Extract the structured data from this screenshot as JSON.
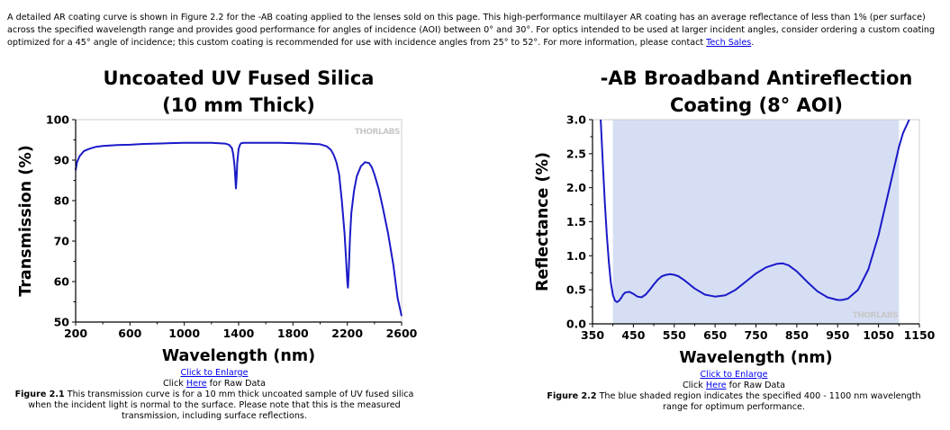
{
  "intro": {
    "text_before_link": "A detailed AR coating curve is shown in Figure 2.2 for the -AB coating applied to the lenses sold on this page. This high-performance multilayer AR coating has an average reflectance of less than 1% (per surface) across the specified wavelength range and provides good performance for angles of incidence (AOI) between 0° and 30°. For optics intended to be used at larger incident angles, consider ordering a custom coating optimized for a 45° angle of incidence; this custom coating is recommended for use with incidence angles from 25° to 52°. For more information, please contact ",
    "link_text": "Tech Sales",
    "text_after_link": "."
  },
  "figure1": {
    "enlarge_link": "Click to Enlarge",
    "raw_prefix": "Click ",
    "raw_link": "Here",
    "raw_suffix": " for Raw Data",
    "label": "Figure 2.1",
    "caption": "  This transmission curve is for a 10 mm thick uncoated sample of UV fused silica when the incident light is normal to the surface. Please note that this is the measured transmission, including surface reflections."
  },
  "figure2": {
    "enlarge_link": "Click to Enlarge",
    "raw_prefix": "Click ",
    "raw_link": "Here",
    "raw_suffix": " for Raw Data",
    "label": "Figure 2.2",
    "caption": "  The blue shaded region indicates the specified 400 - 1100 nm wavelength range for optimum performance."
  },
  "chart_data": [
    {
      "type": "line",
      "title": "Uncoated UV Fused Silica\n(10 mm Thick)",
      "xlabel": "Wavelength (nm)",
      "ylabel": "Transmission (%)",
      "xlim": [
        200,
        2600
      ],
      "ylim": [
        50,
        100
      ],
      "xticks": [
        200,
        600,
        1000,
        1400,
        1800,
        2200,
        2600
      ],
      "yticks": [
        50,
        60,
        70,
        80,
        90,
        100
      ],
      "watermark": "THORLABS",
      "line_color": "#1a1ac8",
      "x": [
        200,
        210,
        230,
        260,
        300,
        350,
        400,
        500,
        600,
        700,
        800,
        900,
        1000,
        1100,
        1200,
        1300,
        1330,
        1350,
        1360,
        1370,
        1375,
        1380,
        1385,
        1390,
        1400,
        1410,
        1420,
        1440,
        1500,
        1600,
        1700,
        1800,
        1900,
        2000,
        2050,
        2080,
        2100,
        2120,
        2140,
        2160,
        2180,
        2190,
        2200,
        2205,
        2210,
        2220,
        2230,
        2250,
        2270,
        2300,
        2330,
        2360,
        2380,
        2400,
        2430,
        2460,
        2500,
        2540,
        2570,
        2600
      ],
      "y": [
        87.5,
        89.5,
        91,
        92.2,
        92.8,
        93.3,
        93.5,
        93.7,
        93.8,
        94,
        94.1,
        94.2,
        94.3,
        94.3,
        94.3,
        94.1,
        93.8,
        93,
        91.5,
        88.5,
        86,
        83,
        85.5,
        89.5,
        92.8,
        93.8,
        94.2,
        94.3,
        94.3,
        94.3,
        94.3,
        94.2,
        94.1,
        93.9,
        93.4,
        92.5,
        91.3,
        89.5,
        86.5,
        80,
        72,
        66,
        60,
        58.5,
        62,
        71,
        77,
        82.5,
        86,
        88.5,
        89.5,
        89.3,
        88.3,
        86.5,
        83,
        78.5,
        72,
        64,
        56,
        51.5
      ]
    },
    {
      "type": "line",
      "title": "-AB Broadband Antireflection\nCoating (8° AOI)",
      "xlabel": "Wavelength (nm)",
      "ylabel": "Reflectance (%)",
      "xlim": [
        350,
        1150
      ],
      "ylim": [
        0.0,
        3.0
      ],
      "xticks": [
        350,
        450,
        550,
        650,
        750,
        850,
        950,
        1050,
        1150
      ],
      "yticks": [
        "0.0",
        "0.5",
        "1.0",
        "1.5",
        "2.0",
        "2.5",
        "3.0"
      ],
      "shaded_range": [
        400,
        1100
      ],
      "shade_color": "#d6def4",
      "watermark": "THORLABS",
      "line_color": "#1a1ac8",
      "x": [
        370,
        375,
        380,
        385,
        390,
        395,
        400,
        405,
        410,
        415,
        420,
        425,
        430,
        440,
        450,
        460,
        470,
        480,
        490,
        500,
        510,
        520,
        530,
        540,
        550,
        560,
        575,
        600,
        625,
        650,
        675,
        700,
        725,
        750,
        775,
        800,
        815,
        830,
        850,
        875,
        900,
        925,
        950,
        960,
        975,
        1000,
        1025,
        1050,
        1075,
        1100,
        1110,
        1125
      ],
      "y": [
        3.0,
        2.4,
        1.8,
        1.3,
        0.9,
        0.6,
        0.42,
        0.34,
        0.32,
        0.34,
        0.38,
        0.43,
        0.46,
        0.47,
        0.44,
        0.4,
        0.39,
        0.43,
        0.5,
        0.58,
        0.65,
        0.7,
        0.72,
        0.73,
        0.72,
        0.7,
        0.64,
        0.52,
        0.43,
        0.4,
        0.42,
        0.5,
        0.62,
        0.74,
        0.83,
        0.88,
        0.89,
        0.86,
        0.77,
        0.62,
        0.48,
        0.39,
        0.35,
        0.35,
        0.37,
        0.5,
        0.8,
        1.3,
        1.95,
        2.6,
        2.8,
        3.0
      ]
    }
  ]
}
